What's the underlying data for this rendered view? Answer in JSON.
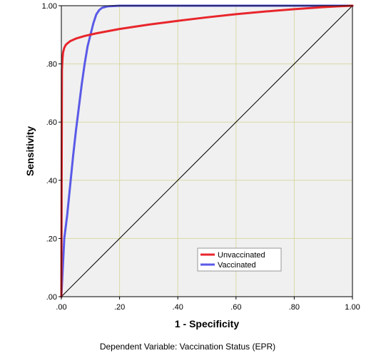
{
  "chart_data": {
    "type": "line",
    "title": "",
    "xlabel": "1 - Specificity",
    "ylabel": "Sensitivity",
    "footnote": "Dependent Variable: Vaccination Status (EPR)",
    "xlim": [
      0,
      1
    ],
    "ylim": [
      0,
      1
    ],
    "x_ticks": [
      0,
      0.2,
      0.4,
      0.6,
      0.8,
      1.0
    ],
    "x_tick_labels": [
      ".00",
      ".20",
      ".40",
      ".60",
      ".80",
      "1.00"
    ],
    "y_ticks": [
      0,
      0.2,
      0.4,
      0.6,
      0.8,
      1.0
    ],
    "y_tick_labels": [
      ".00",
      ".20",
      ".40",
      ".60",
      ".80",
      "1.00"
    ],
    "grid": true,
    "legend_position": "bottom-right",
    "colors": {
      "plot_background": "#f0f0f0",
      "grid": "#d9d9a8",
      "reference_line": "#000000"
    },
    "series": [
      {
        "name": "Unvaccinated",
        "color": "#e8262c",
        "x": [
          0,
          0.002,
          0.004,
          0.006,
          0.01,
          0.015,
          0.02,
          0.03,
          0.05,
          0.08,
          0.12,
          0.2,
          0.3,
          0.4,
          0.5,
          0.6,
          0.7,
          0.8,
          0.9,
          0.95,
          1.0
        ],
        "y": [
          0,
          0.78,
          0.82,
          0.84,
          0.855,
          0.865,
          0.87,
          0.878,
          0.887,
          0.896,
          0.905,
          0.92,
          0.935,
          0.948,
          0.96,
          0.971,
          0.98,
          0.988,
          0.995,
          0.998,
          1.0
        ]
      },
      {
        "name": "Vaccinated",
        "color": "#5a5ae8",
        "x": [
          0,
          0.005,
          0.01,
          0.02,
          0.03,
          0.04,
          0.05,
          0.06,
          0.07,
          0.08,
          0.09,
          0.1,
          0.11,
          0.12,
          0.13,
          0.14,
          0.16,
          0.2,
          0.4,
          0.6,
          0.8,
          1.0
        ],
        "y": [
          0,
          0.1,
          0.2,
          0.28,
          0.38,
          0.48,
          0.57,
          0.65,
          0.73,
          0.8,
          0.86,
          0.9,
          0.94,
          0.97,
          0.985,
          0.993,
          0.998,
          1.0,
          1.0,
          1.0,
          1.0,
          1.0
        ]
      },
      {
        "name": "Reference Line",
        "color": "#000000",
        "x": [
          0,
          1
        ],
        "y": [
          0,
          1
        ]
      }
    ]
  }
}
